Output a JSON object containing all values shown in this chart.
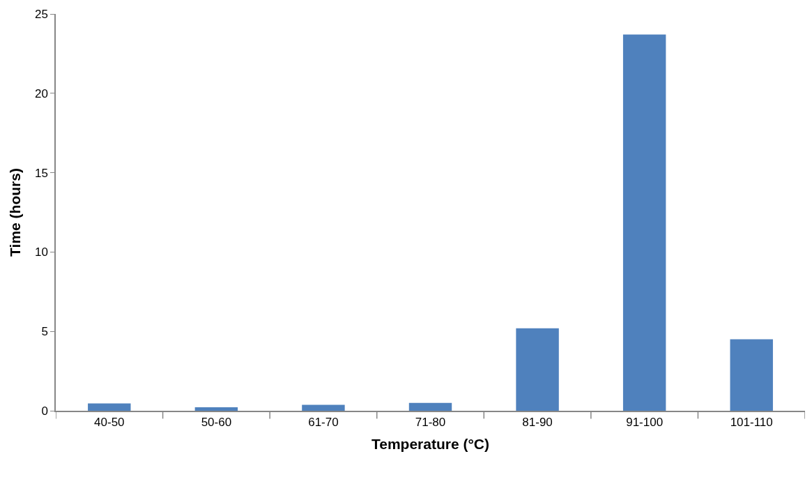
{
  "chart_data": {
    "type": "bar",
    "xlabel": "Temperature (°C)",
    "ylabel": "Time (hours)",
    "categories": [
      "40-50",
      "50-60",
      "61-70",
      "71-80",
      "81-90",
      "91-100",
      "101-110"
    ],
    "values": [
      0.46,
      0.22,
      0.37,
      0.49,
      5.2,
      23.7,
      4.5
    ],
    "color": "#4f81bd",
    "ylim": [
      0,
      25
    ],
    "yticks": [
      0,
      5,
      10,
      15,
      20,
      25
    ]
  }
}
